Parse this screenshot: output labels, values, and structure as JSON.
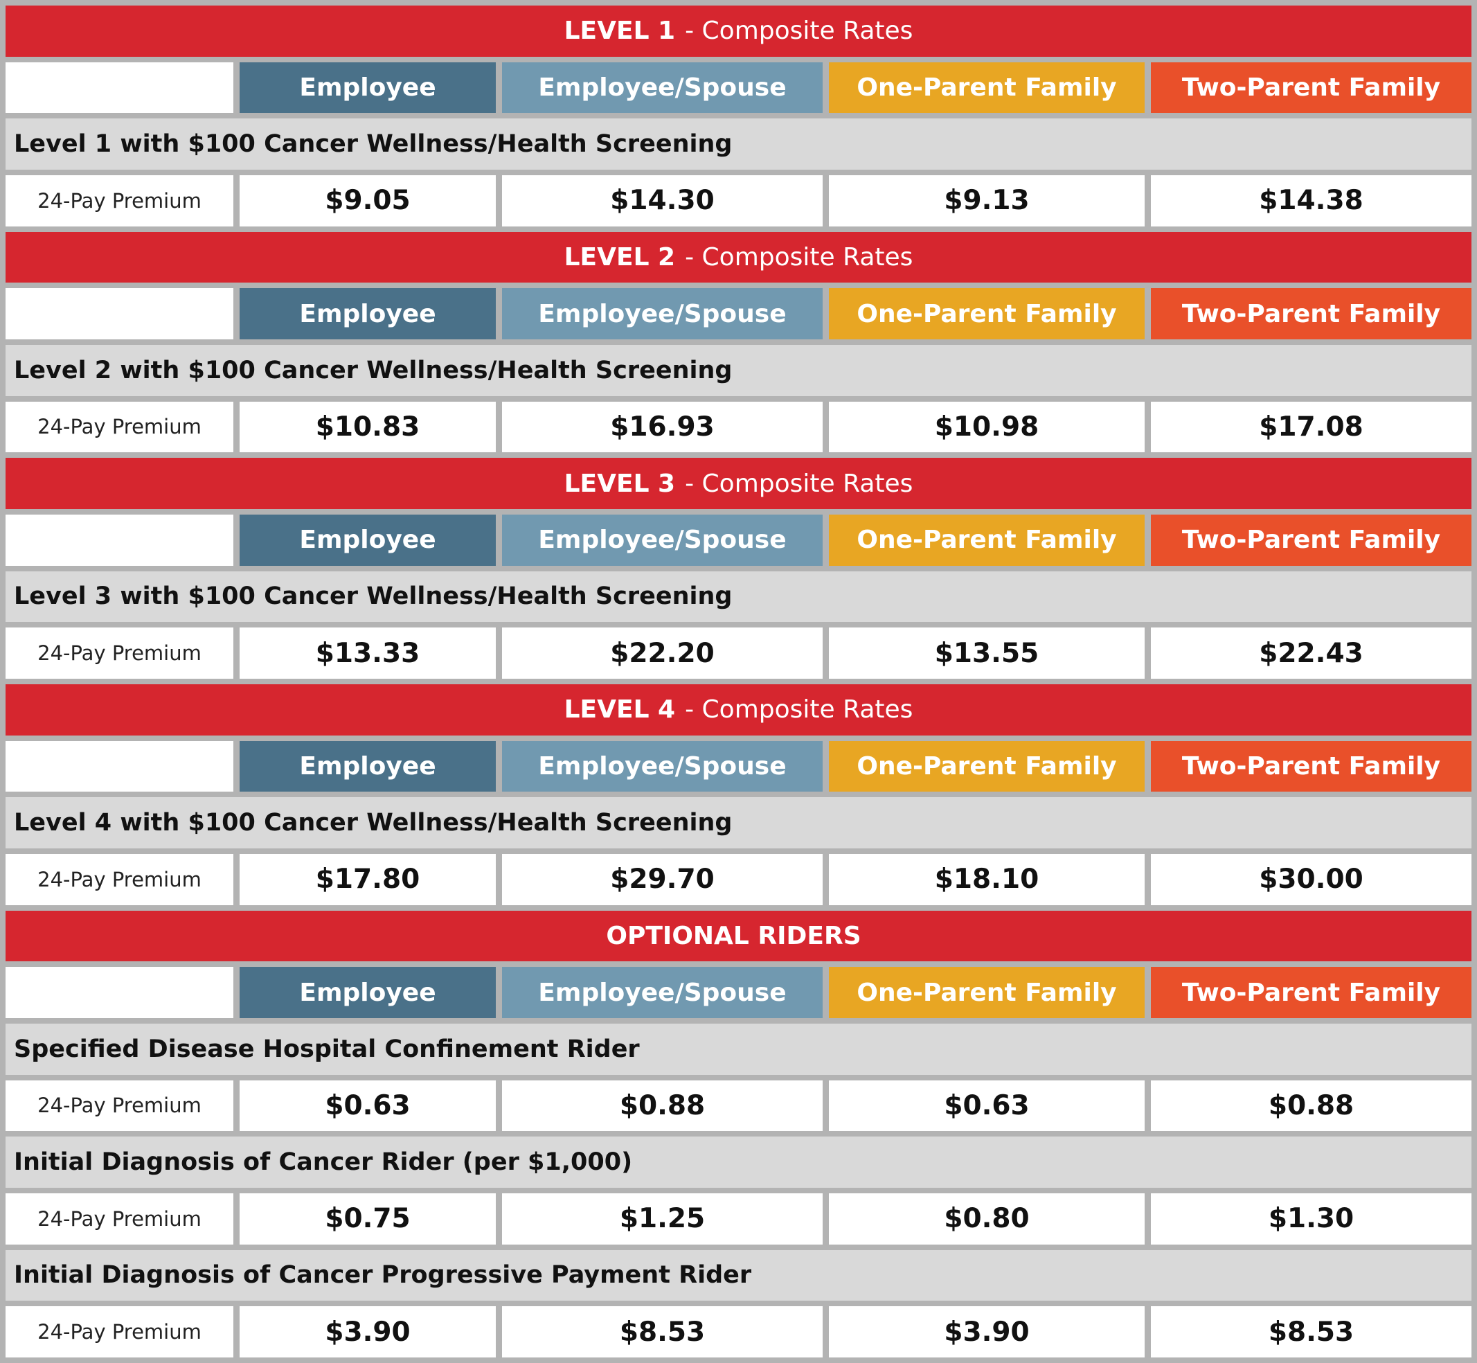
{
  "sections": [
    {
      "title_bold": "LEVEL 1",
      "title_rest": "- Composite Rates",
      "columns": [
        "Employee",
        "Employee/Spouse",
        "One-Parent Family",
        "Two-Parent Family"
      ],
      "rows": [
        {
          "label": "Level 1 with $100 Cancer Wellness/Health Screening",
          "premium_label": "24-Pay Premium",
          "values": [
            "$9.05",
            "$14.30",
            "$9.13",
            "$14.38"
          ]
        }
      ]
    },
    {
      "title_bold": "LEVEL 2",
      "title_rest": "- Composite Rates",
      "columns": [
        "Employee",
        "Employee/Spouse",
        "One-Parent Family",
        "Two-Parent Family"
      ],
      "rows": [
        {
          "label": "Level 2 with $100 Cancer Wellness/Health Screening",
          "premium_label": "24-Pay Premium",
          "values": [
            "$10.83",
            "$16.93",
            "$10.98",
            "$17.08"
          ]
        }
      ]
    },
    {
      "title_bold": "LEVEL 3",
      "title_rest": "- Composite Rates",
      "columns": [
        "Employee",
        "Employee/Spouse",
        "One-Parent Family",
        "Two-Parent Family"
      ],
      "rows": [
        {
          "label": "Level 3 with $100 Cancer Wellness/Health Screening",
          "premium_label": "24-Pay Premium",
          "values": [
            "$13.33",
            "$22.20",
            "$13.55",
            "$22.43"
          ]
        }
      ]
    },
    {
      "title_bold": "LEVEL 4",
      "title_rest": "- Composite Rates",
      "columns": [
        "Employee",
        "Employee/Spouse",
        "One-Parent Family",
        "Two-Parent Family"
      ],
      "rows": [
        {
          "label": "Level 4 with $100 Cancer Wellness/Health Screening",
          "premium_label": "24-Pay Premium",
          "values": [
            "$17.80",
            "$29.70",
            "$18.10",
            "$30.00"
          ]
        }
      ]
    },
    {
      "title_bold": "OPTIONAL RIDERS",
      "columns": [
        "Employee",
        "Employee/Spouse",
        "One-Parent Family",
        "Two-Parent Family"
      ],
      "rows": [
        {
          "label": "Specified Disease Hospital Confinement Rider",
          "premium_label": "24-Pay Premium",
          "values": [
            "$0.63",
            "$0.88",
            "$0.63",
            "$0.88"
          ]
        },
        {
          "label": "Initial Diagnosis of Cancer Rider (per $1,000)",
          "premium_label": "24-Pay Premium",
          "values": [
            "$0.75",
            "$1.25",
            "$0.80",
            "$1.30"
          ]
        },
        {
          "label": "Initial Diagnosis of Cancer Progressive Payment Rider",
          "premium_label": "24-Pay Premium",
          "values": [
            "$3.90",
            "$8.53",
            "$3.90",
            "$8.53"
          ]
        }
      ]
    }
  ]
}
